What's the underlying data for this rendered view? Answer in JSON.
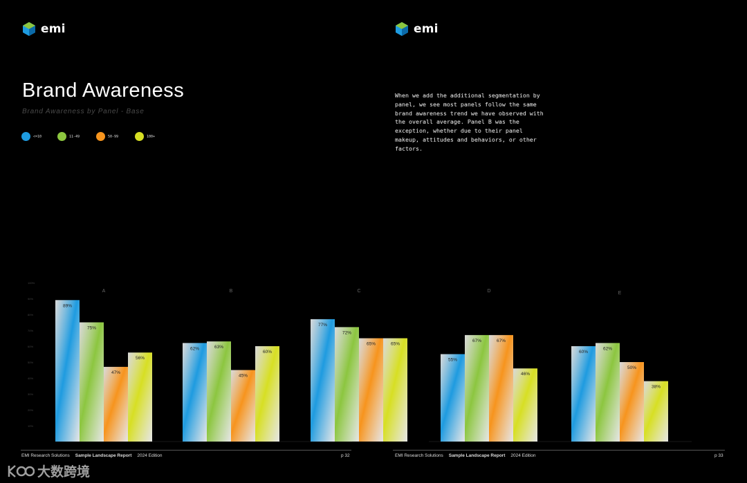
{
  "brand": {
    "logo_text": "emi"
  },
  "page": {
    "title": "Brand Awareness",
    "subtitle": "Brand Awareness by Panel - Base",
    "paragraph": "When we add the additional segmentation by panel, we see most panels follow the same brand awareness trend we have observed with the overall average. Panel B was the exception, whether due to their panel makeup, attitudes and behaviors, or other factors."
  },
  "legend": [
    {
      "label": "<=10",
      "color": "#1e9be0"
    },
    {
      "label": "11-49",
      "color": "#8cc63f"
    },
    {
      "label": "50-99",
      "color": "#f7941d"
    },
    {
      "label": "100+",
      "color": "#d7df23"
    }
  ],
  "footer": {
    "left": {
      "org": "EMI Research Solutions",
      "report": "Sample Landscape Report",
      "edition": "2024 Edition",
      "page": "p 32"
    },
    "right": {
      "org": "EMI Research Solutions",
      "report": "Sample Landscape Report",
      "edition": "2024 Edition",
      "page": "p 33"
    }
  },
  "watermark": {
    "text": "大数跨境"
  },
  "chart_data": {
    "type": "bar",
    "categories": [
      "A",
      "B",
      "C",
      "D",
      "E"
    ],
    "series": [
      {
        "name": "<=10",
        "color": "#1e9be0",
        "values": [
          89,
          62,
          77,
          55,
          60
        ]
      },
      {
        "name": "11-49",
        "color": "#8cc63f",
        "values": [
          75,
          63,
          72,
          67,
          62
        ]
      },
      {
        "name": "50-99",
        "color": "#f7941d",
        "values": [
          47,
          45,
          65,
          67,
          50
        ]
      },
      {
        "name": "100+",
        "color": "#d7df23",
        "values": [
          56,
          60,
          65,
          46,
          38
        ]
      }
    ],
    "value_labels": [
      [
        "89%",
        "75%",
        "47%",
        "56%"
      ],
      [
        "62%",
        "63%",
        "45%",
        "60%"
      ],
      [
        "77%",
        "72%",
        "65%",
        "65%"
      ],
      [
        "55%",
        "67%",
        "67%",
        "46%"
      ],
      [
        "60%",
        "62%",
        "50%",
        "38%"
      ]
    ],
    "y_ticks": [
      "10%",
      "20%",
      "30%",
      "40%",
      "50%",
      "60%",
      "70%",
      "80%",
      "90%",
      "100%"
    ],
    "ylim": [
      0,
      100
    ],
    "grid": false,
    "legend_position": "top-left"
  }
}
